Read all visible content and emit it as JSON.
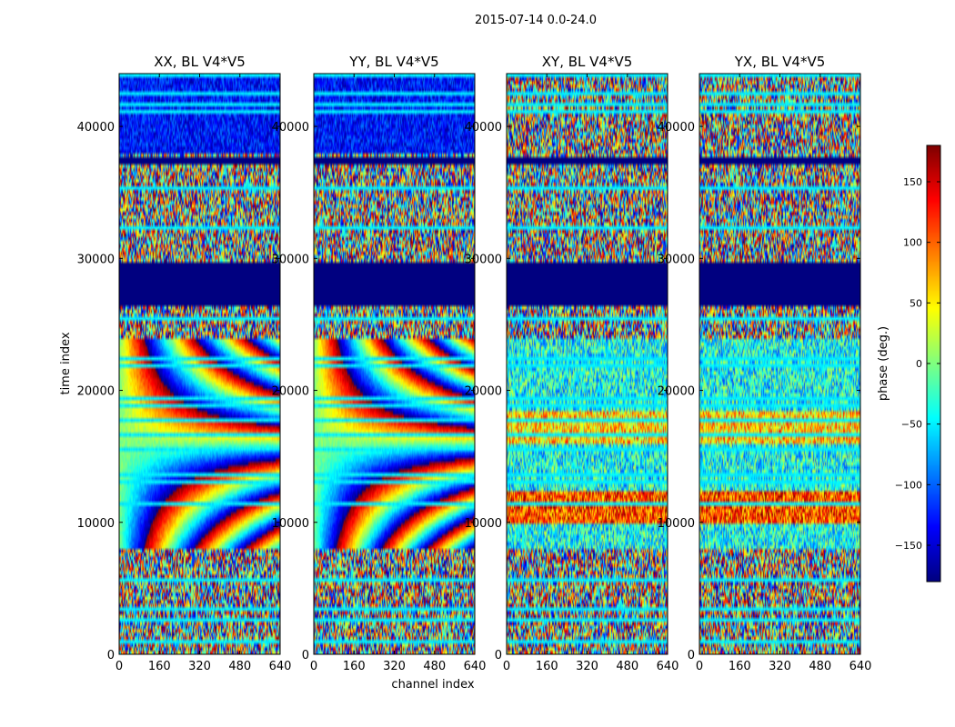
{
  "suptitle": "2015-07-14 0.0-24.0",
  "chart_data": {
    "type": "heatmap",
    "xlabel": "channel index",
    "ylabel": "time index",
    "xlim": [
      0,
      640
    ],
    "ylim": [
      0,
      44000
    ],
    "xticks": [
      0,
      160,
      320,
      480,
      640
    ],
    "yticks": [
      0,
      10000,
      20000,
      30000,
      40000
    ],
    "colormap": "jet",
    "panels": [
      {
        "title": "XX, BL V4*V5",
        "kind": "parallel"
      },
      {
        "title": "YY, BL V4*V5",
        "kind": "parallel"
      },
      {
        "title": "XY, BL V4*V5",
        "kind": "cross"
      },
      {
        "title": "YX, BL V4*V5",
        "kind": "cross"
      }
    ],
    "colorbar": {
      "label": "phase (deg.)",
      "range": [
        -180,
        180
      ],
      "ticks": [
        150,
        100,
        50,
        0,
        -50,
        -100,
        -150
      ],
      "tick_labels": [
        "150",
        "100",
        "50",
        "0",
        "−50",
        "−100",
        "−150"
      ]
    }
  }
}
